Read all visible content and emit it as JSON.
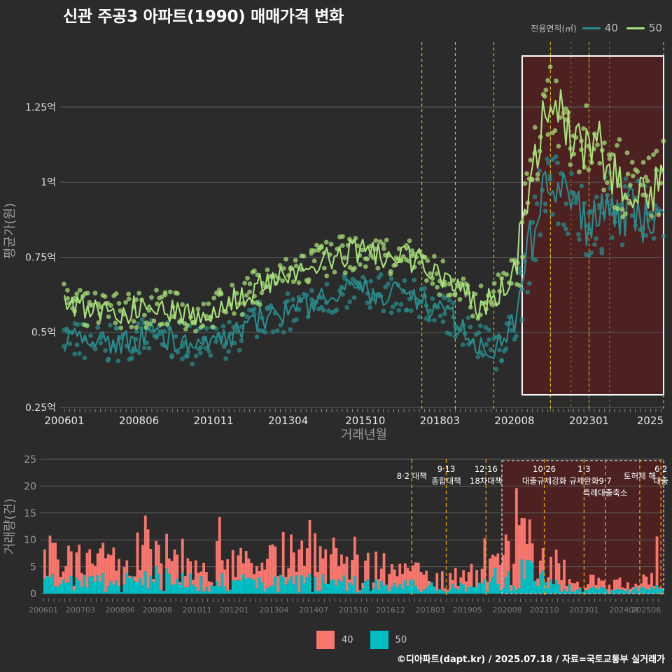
{
  "title": "신관 주공3 아파트(1990) 매매가격 변화",
  "legend_top": {
    "title": "전용면적(㎡)",
    "items": [
      {
        "label": "40",
        "color": "#2a8c8c"
      },
      {
        "label": "50",
        "color": "#a8e07a"
      }
    ]
  },
  "legend_bottom": {
    "items": [
      {
        "label": "40",
        "color": "#f8766d"
      },
      {
        "label": "50",
        "color": "#00bfc4"
      }
    ]
  },
  "credit": "©디아파트(dapt.kr) / 2025.07.18 / 자료=국토교통부 실거래가",
  "chart_data": [
    {
      "type": "line",
      "ylabel": "평균가(원)",
      "xlabel": "거래년월",
      "yticks": [
        "0.25억",
        "0.5억",
        "0.75억",
        "1억",
        "1.25억"
      ],
      "ylim": [
        0.25,
        1.42
      ],
      "xticks": [
        "200601",
        "200806",
        "201011",
        "201304",
        "201510",
        "201803",
        "202008",
        "202301",
        "2025"
      ],
      "x_range": [
        "2006-01",
        "2025-06"
      ],
      "grid": true,
      "highlight_region": {
        "from": "2020-11",
        "to": "2025-06"
      },
      "vlines": [
        "2017-08",
        "2018-09",
        "2019-12",
        "2021-10",
        "2023-01",
        "2025-06"
      ],
      "series": [
        {
          "name": "40",
          "color": "#2a8c8c",
          "anchors": [
            [
              "2006-01",
              0.48
            ],
            [
              "2007-06",
              0.46
            ],
            [
              "2009-01",
              0.49
            ],
            [
              "2010-06",
              0.45
            ],
            [
              "2011-06",
              0.48
            ],
            [
              "2012-06",
              0.55
            ],
            [
              "2013-06",
              0.57
            ],
            [
              "2014-06",
              0.61
            ],
            [
              "2015-06",
              0.64
            ],
            [
              "2016-06",
              0.63
            ],
            [
              "2017-06",
              0.61
            ],
            [
              "2018-06",
              0.56
            ],
            [
              "2019-06",
              0.47
            ],
            [
              "2020-01",
              0.44
            ],
            [
              "2020-09",
              0.55
            ],
            [
              "2021-01",
              0.75
            ],
            [
              "2021-06",
              0.93
            ],
            [
              "2021-10",
              1.0
            ],
            [
              "2022-03",
              0.95
            ],
            [
              "2022-09",
              0.9
            ],
            [
              "2023-03",
              0.86
            ],
            [
              "2023-09",
              0.92
            ],
            [
              "2024-03",
              0.9
            ],
            [
              "2024-09",
              0.88
            ],
            [
              "2025-06",
              0.92
            ]
          ]
        },
        {
          "name": "50",
          "color": "#a8e07a",
          "anchors": [
            [
              "2006-01",
              0.6
            ],
            [
              "2007-06",
              0.57
            ],
            [
              "2009-01",
              0.58
            ],
            [
              "2010-06",
              0.56
            ],
            [
              "2011-06",
              0.6
            ],
            [
              "2012-06",
              0.66
            ],
            [
              "2013-06",
              0.7
            ],
            [
              "2014-06",
              0.74
            ],
            [
              "2015-06",
              0.77
            ],
            [
              "2016-06",
              0.76
            ],
            [
              "2017-06",
              0.74
            ],
            [
              "2018-06",
              0.67
            ],
            [
              "2019-06",
              0.59
            ],
            [
              "2020-01",
              0.62
            ],
            [
              "2020-09",
              0.72
            ],
            [
              "2021-01",
              0.95
            ],
            [
              "2021-06",
              1.15
            ],
            [
              "2021-10",
              1.3
            ],
            [
              "2022-03",
              1.2
            ],
            [
              "2022-09",
              1.12
            ],
            [
              "2023-03",
              1.15
            ],
            [
              "2023-09",
              1.05
            ],
            [
              "2024-03",
              1.0
            ],
            [
              "2024-09",
              0.95
            ],
            [
              "2025-06",
              1.02
            ]
          ]
        }
      ]
    },
    {
      "type": "bar",
      "ylabel": "거래량(건)",
      "yticks": [
        "0",
        "5",
        "10",
        "15",
        "20",
        "25"
      ],
      "ylim": [
        0,
        25
      ],
      "xticks": [
        "200601",
        "200703",
        "200806",
        "200908",
        "201011",
        "201201",
        "201304",
        "201407",
        "201510",
        "201612",
        "201803",
        "201905",
        "202008",
        "202110",
        "202301",
        "202404",
        "202506"
      ],
      "x_range": [
        "2006-01",
        "2025-06"
      ],
      "stacked": true,
      "highlight_region": {
        "from": "2020-06",
        "to": "2025-06"
      },
      "annotations": [
        {
          "date": "2017-08",
          "lines": [
            "8·2 대책"
          ]
        },
        {
          "date": "2018-09",
          "lines": [
            "9·13",
            "종합대책"
          ]
        },
        {
          "date": "2019-12",
          "lines": [
            "12·16",
            "18차대책"
          ]
        },
        {
          "date": "2021-10",
          "lines": [
            "10·26",
            "대출규제강화"
          ]
        },
        {
          "date": "2023-01",
          "lines": [
            "1·3",
            "규제완화"
          ]
        },
        {
          "date": "2023-09",
          "lines": [
            "9·7",
            "특례대출축소"
          ]
        },
        {
          "date": "2024-10",
          "lines": [
            "토허제 해"
          ]
        },
        {
          "date": "2025-06",
          "lines": [
            "6·2",
            "대출"
          ]
        }
      ],
      "series": [
        {
          "name": "40",
          "color": "#f8766d",
          "anchors": [
            [
              "2006-01",
              4
            ],
            [
              "2008-01",
              3.5
            ],
            [
              "2009-06",
              5
            ],
            [
              "2010-06",
              3
            ],
            [
              "2011-06",
              4
            ],
            [
              "2012-06",
              3.5
            ],
            [
              "2013-06",
              4
            ],
            [
              "2014-06",
              5
            ],
            [
              "2015-06",
              4
            ],
            [
              "2016-06",
              3
            ],
            [
              "2017-06",
              3
            ],
            [
              "2018-06",
              2
            ],
            [
              "2019-06",
              2
            ],
            [
              "2020-06",
              3
            ],
            [
              "2021-01",
              7
            ],
            [
              "2021-06",
              5
            ],
            [
              "2022-01",
              3
            ],
            [
              "2022-09",
              1
            ],
            [
              "2023-06",
              1.5
            ],
            [
              "2024-06",
              1
            ],
            [
              "2025-06",
              2
            ]
          ]
        },
        {
          "name": "50",
          "color": "#00bfc4",
          "anchors": [
            [
              "2006-01",
              2
            ],
            [
              "2008-01",
              2
            ],
            [
              "2009-06",
              3
            ],
            [
              "2010-06",
              2
            ],
            [
              "2011-06",
              2
            ],
            [
              "2012-06",
              2
            ],
            [
              "2013-06",
              2
            ],
            [
              "2014-06",
              2
            ],
            [
              "2015-06",
              2
            ],
            [
              "2016-06",
              1.5
            ],
            [
              "2017-06",
              1.5
            ],
            [
              "2018-06",
              1
            ],
            [
              "2019-06",
              1.5
            ],
            [
              "2020-06",
              3
            ],
            [
              "2021-01",
              4
            ],
            [
              "2021-06",
              3
            ],
            [
              "2022-01",
              1.5
            ],
            [
              "2022-09",
              0.8
            ],
            [
              "2023-06",
              0.8
            ],
            [
              "2024-06",
              0.6
            ],
            [
              "2025-06",
              1
            ]
          ]
        }
      ]
    }
  ]
}
